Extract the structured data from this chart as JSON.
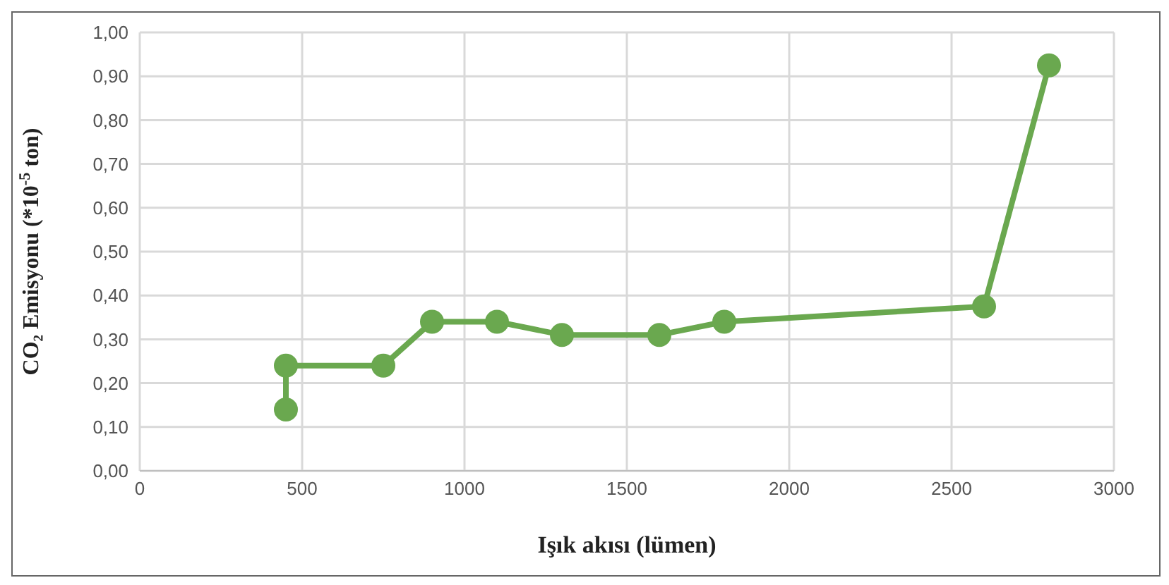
{
  "chart_data": {
    "type": "line",
    "xlabel": "Işık akısı (lümen)",
    "ylabel": "CO₂ Emisyonu (*10$^{-5}$ ton)",
    "x": [
      450,
      450,
      750,
      900,
      1100,
      1300,
      1600,
      1800,
      2600,
      2800
    ],
    "series": [
      {
        "color": "#6aa84f",
        "values": [
          0.14,
          0.24,
          0.24,
          0.34,
          0.34,
          0.31,
          0.31,
          0.34,
          0.375,
          0.925
        ]
      }
    ],
    "xlim": [
      0,
      3000
    ],
    "xticks": [
      0,
      500,
      1000,
      1500,
      2000,
      2500,
      3000
    ],
    "ylim": [
      0,
      1
    ],
    "yticks": [
      {
        "value": 0,
        "label": "0,00"
      },
      {
        "value": 0.1,
        "label": "0,10"
      },
      {
        "value": 0.2,
        "label": "0,20"
      },
      {
        "value": 0.3,
        "label": "0,30"
      },
      {
        "value": 0.4,
        "label": "0,40"
      },
      {
        "value": 0.5,
        "label": "0,50"
      },
      {
        "value": 0.6,
        "label": "0,60"
      },
      {
        "value": 0.7,
        "label": "0,70"
      },
      {
        "value": 0.8,
        "label": "0,80"
      },
      {
        "value": 0.9,
        "label": "0,90"
      },
      {
        "value": 1,
        "label": "1,00"
      }
    ],
    "grid": true,
    "marker": "circle",
    "line_style": "solid",
    "legend": false
  }
}
